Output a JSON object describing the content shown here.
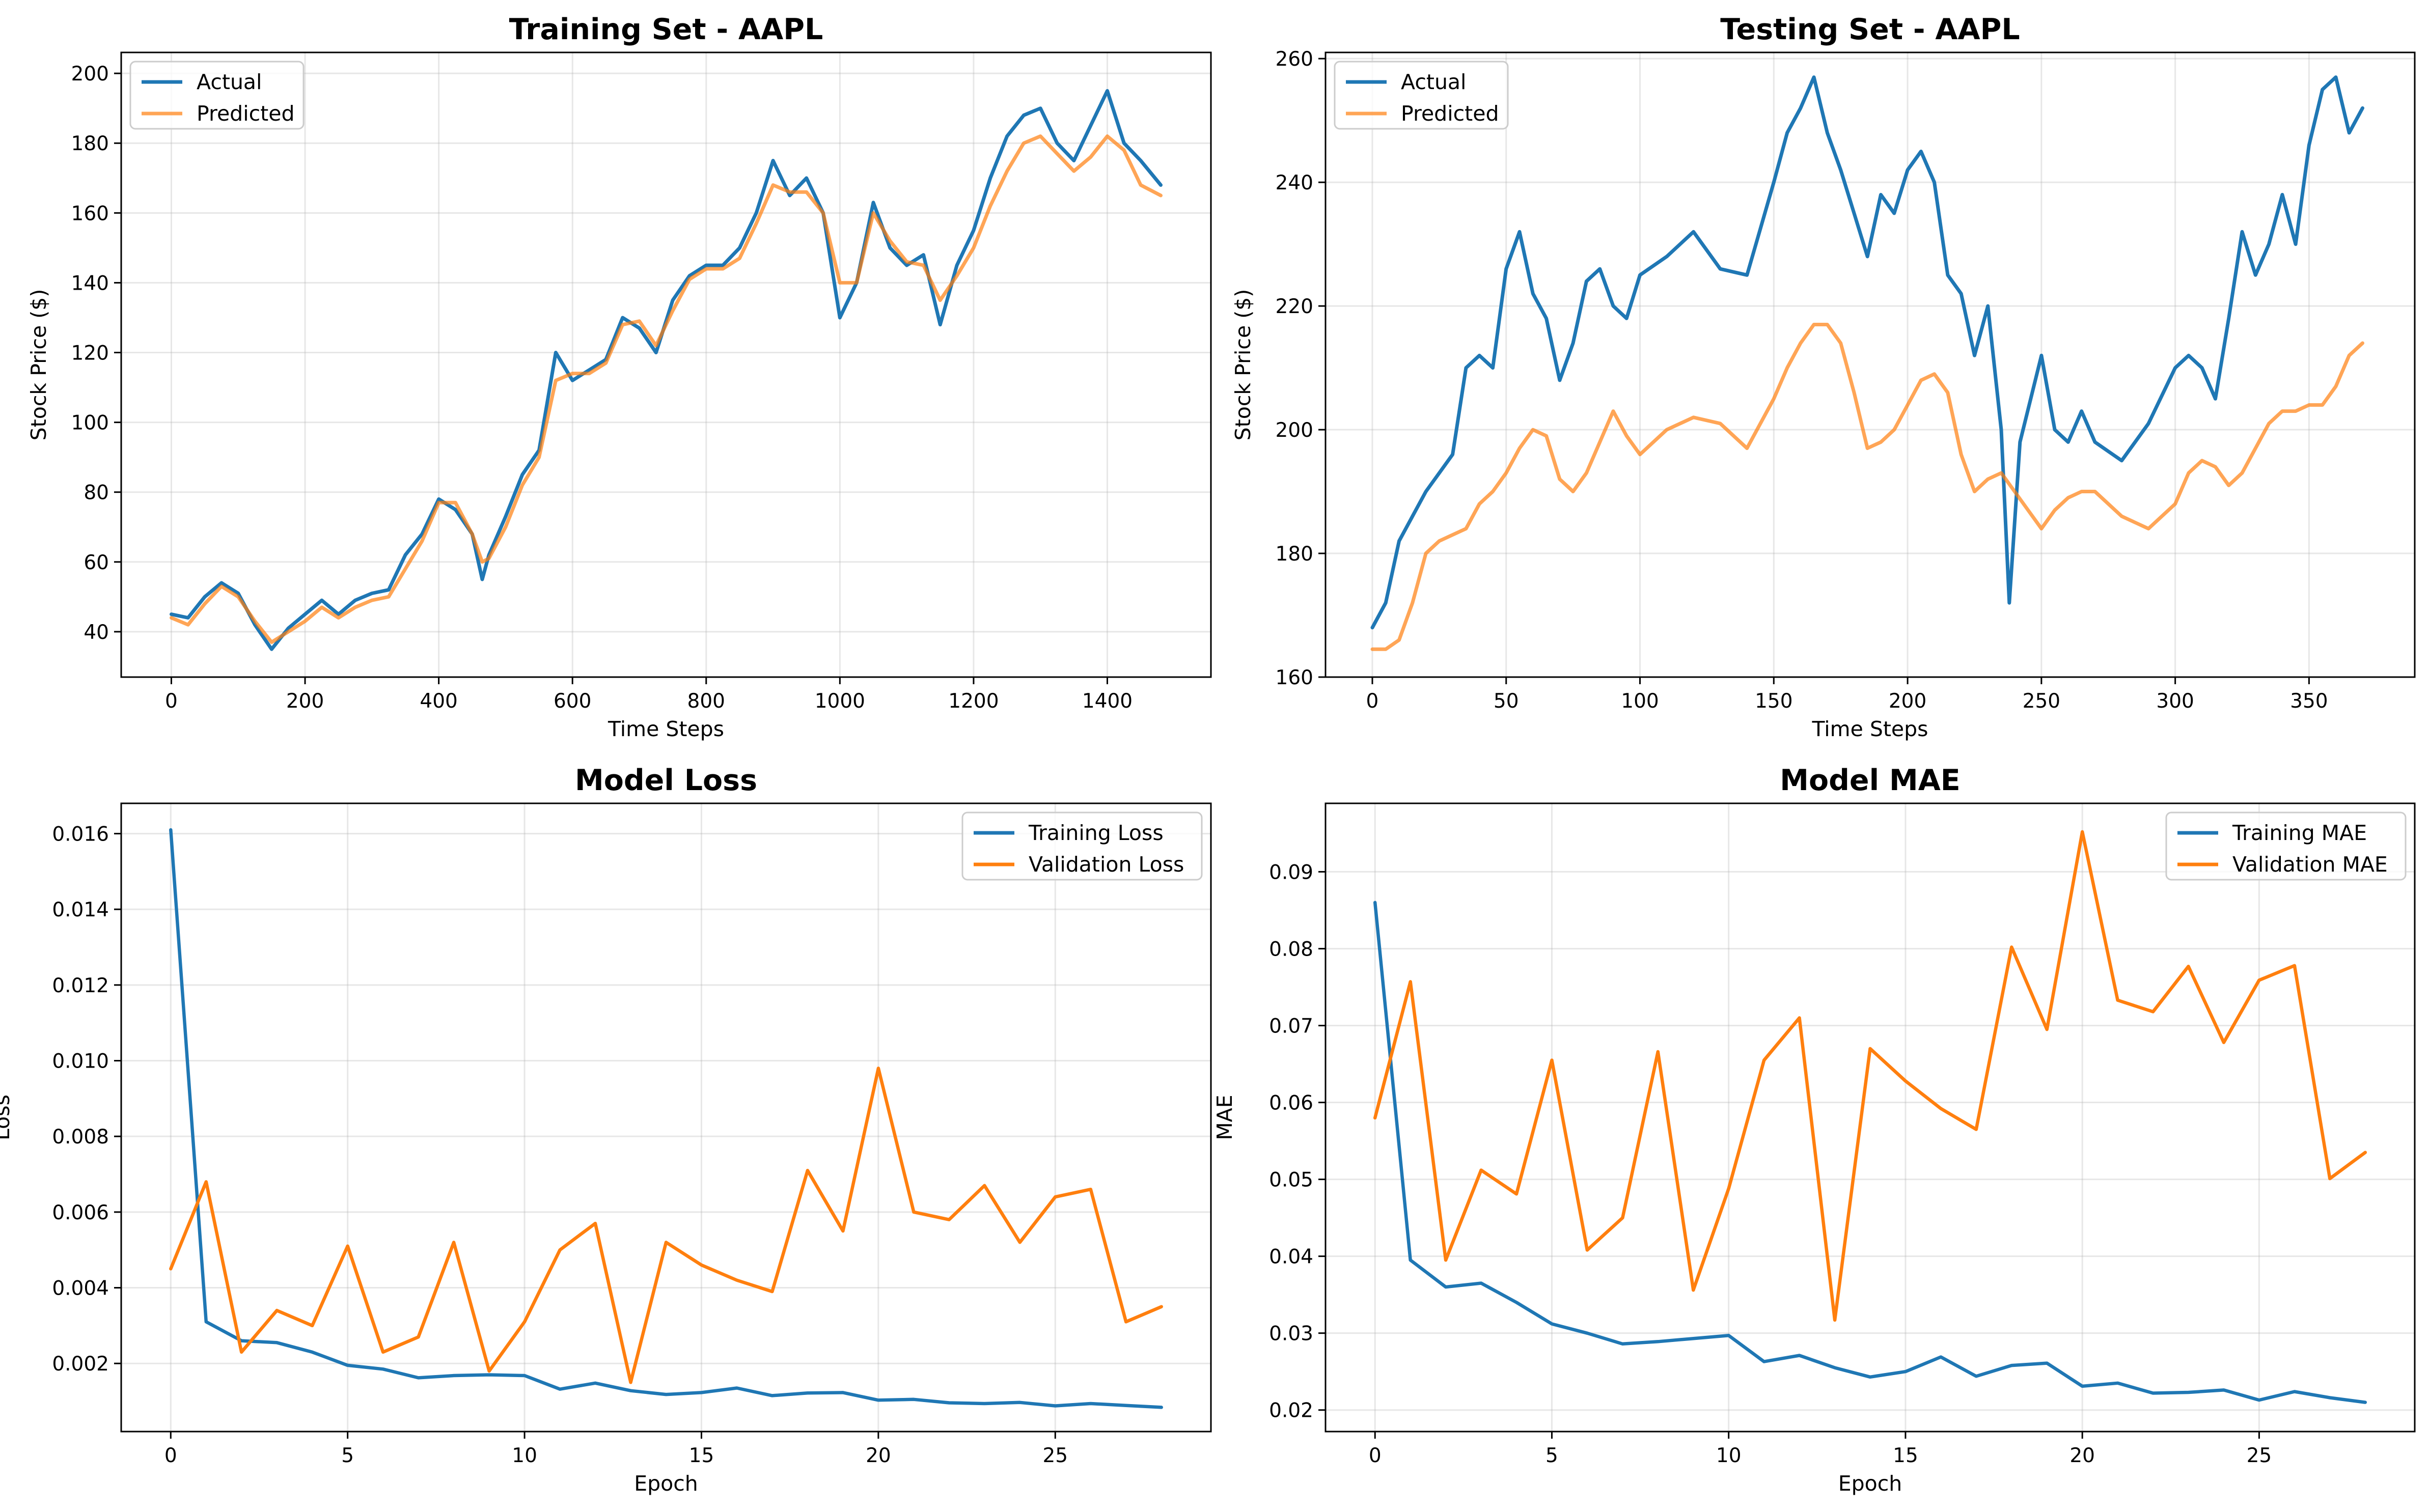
{
  "chart_data": [
    {
      "type": "line",
      "title": "Training Set - AAPL",
      "xlabel": "Time Steps",
      "ylabel": "Stock Price ($)",
      "xlim": [
        -75,
        1555
      ],
      "ylim": [
        27,
        206
      ],
      "xticks": [
        0,
        200,
        400,
        600,
        800,
        1000,
        1200,
        1400
      ],
      "yticks": [
        40,
        60,
        80,
        100,
        120,
        140,
        160,
        180,
        200
      ],
      "grid": true,
      "legend": "upper-left",
      "series": [
        {
          "name": "Actual",
          "color": "#1f77b4",
          "x": [
            0,
            25,
            50,
            75,
            100,
            125,
            150,
            175,
            200,
            225,
            250,
            275,
            300,
            325,
            350,
            375,
            400,
            425,
            450,
            465,
            475,
            500,
            525,
            550,
            575,
            600,
            625,
            650,
            675,
            700,
            725,
            750,
            775,
            800,
            825,
            850,
            875,
            900,
            925,
            950,
            975,
            1000,
            1025,
            1050,
            1075,
            1100,
            1125,
            1150,
            1175,
            1200,
            1225,
            1250,
            1275,
            1300,
            1325,
            1350,
            1375,
            1400,
            1425,
            1450,
            1480
          ],
          "y": [
            45,
            44,
            50,
            54,
            51,
            42,
            35,
            41,
            45,
            49,
            45,
            49,
            51,
            52,
            62,
            68,
            78,
            75,
            68,
            55,
            62,
            73,
            85,
            92,
            120,
            112,
            115,
            118,
            130,
            127,
            120,
            135,
            142,
            145,
            145,
            150,
            160,
            175,
            165,
            170,
            160,
            130,
            140,
            163,
            150,
            145,
            148,
            128,
            145,
            155,
            170,
            182,
            188,
            190,
            180,
            175,
            185,
            195,
            180,
            175,
            168
          ]
        },
        {
          "name": "Predicted",
          "color": "#ff7f0e",
          "x": [
            0,
            25,
            50,
            75,
            100,
            125,
            150,
            175,
            200,
            225,
            250,
            275,
            300,
            325,
            350,
            375,
            400,
            425,
            450,
            465,
            475,
            500,
            525,
            550,
            575,
            600,
            625,
            650,
            675,
            700,
            725,
            750,
            775,
            800,
            825,
            850,
            875,
            900,
            925,
            950,
            975,
            1000,
            1025,
            1050,
            1075,
            1100,
            1125,
            1150,
            1175,
            1200,
            1225,
            1250,
            1275,
            1300,
            1325,
            1350,
            1375,
            1400,
            1425,
            1450,
            1480
          ],
          "y": [
            44,
            42,
            48,
            53,
            50,
            43,
            37,
            40,
            43,
            47,
            44,
            47,
            49,
            50,
            58,
            66,
            77,
            77,
            68,
            60,
            61,
            70,
            82,
            90,
            112,
            114,
            114,
            117,
            128,
            129,
            122,
            132,
            141,
            144,
            144,
            147,
            157,
            168,
            166,
            166,
            160,
            140,
            140,
            160,
            152,
            146,
            145,
            135,
            142,
            150,
            162,
            172,
            180,
            182,
            177,
            172,
            176,
            182,
            178,
            168,
            165
          ]
        }
      ]
    },
    {
      "type": "line",
      "title": "Testing Set - AAPL",
      "xlabel": "Time Steps",
      "ylabel": "Stock Price ($)",
      "xlim": [
        -17.5,
        389.5
      ],
      "ylim": [
        160,
        261
      ],
      "xticks": [
        0,
        50,
        100,
        150,
        200,
        250,
        300,
        350
      ],
      "yticks": [
        160,
        180,
        200,
        220,
        240,
        260
      ],
      "grid": true,
      "legend": "upper-left",
      "series": [
        {
          "name": "Actual",
          "color": "#1f77b4",
          "x": [
            0,
            5,
            10,
            15,
            20,
            25,
            30,
            35,
            40,
            45,
            50,
            55,
            60,
            65,
            70,
            75,
            80,
            85,
            90,
            95,
            100,
            110,
            120,
            130,
            140,
            150,
            155,
            160,
            165,
            170,
            175,
            180,
            185,
            190,
            195,
            200,
            205,
            210,
            215,
            220,
            225,
            230,
            235,
            238,
            242,
            250,
            255,
            260,
            265,
            270,
            280,
            290,
            300,
            305,
            310,
            315,
            320,
            325,
            330,
            335,
            340,
            345,
            350,
            355,
            360,
            365,
            370
          ],
          "y": [
            168,
            172,
            182,
            186,
            190,
            193,
            196,
            210,
            212,
            210,
            226,
            232,
            222,
            218,
            208,
            214,
            224,
            226,
            220,
            218,
            225,
            228,
            232,
            226,
            225,
            240,
            248,
            252,
            257,
            248,
            242,
            235,
            228,
            238,
            235,
            242,
            245,
            240,
            225,
            222,
            212,
            220,
            200,
            172,
            198,
            212,
            200,
            198,
            203,
            198,
            195,
            201,
            210,
            212,
            210,
            205,
            218,
            232,
            225,
            230,
            238,
            230,
            246,
            255,
            257,
            248,
            252
          ]
        },
        {
          "name": "Predicted",
          "color": "#ff7f0e",
          "x": [
            0,
            5,
            10,
            15,
            20,
            25,
            30,
            35,
            40,
            45,
            50,
            55,
            60,
            65,
            70,
            75,
            80,
            85,
            90,
            95,
            100,
            110,
            120,
            130,
            140,
            150,
            155,
            160,
            165,
            170,
            175,
            180,
            185,
            190,
            195,
            200,
            205,
            210,
            215,
            220,
            225,
            230,
            235,
            240,
            245,
            250,
            255,
            260,
            265,
            270,
            280,
            290,
            300,
            305,
            310,
            315,
            320,
            325,
            330,
            335,
            340,
            345,
            350,
            355,
            360,
            365,
            370
          ],
          "y": [
            164.5,
            164.5,
            166,
            172,
            180,
            182,
            183,
            184,
            188,
            190,
            193,
            197,
            200,
            199,
            192,
            190,
            193,
            198,
            203,
            199,
            196,
            200,
            202,
            201,
            197,
            205,
            210,
            214,
            217,
            217,
            214,
            206,
            197,
            198,
            200,
            204,
            208,
            209,
            206,
            196,
            190,
            192,
            193,
            190,
            187,
            184,
            187,
            189,
            190,
            190,
            186,
            184,
            188,
            193,
            195,
            194,
            191,
            193,
            197,
            201,
            203,
            203,
            204,
            204,
            207,
            212,
            214
          ]
        }
      ]
    },
    {
      "type": "line",
      "title": "Model Loss",
      "xlabel": "Epoch",
      "ylabel": "Loss",
      "xlim": [
        -1.4,
        29.4
      ],
      "ylim": [
        0.0002,
        0.0168
      ],
      "xticks": [
        0,
        5,
        10,
        15,
        20,
        25
      ],
      "yticks": [
        0.002,
        0.004,
        0.006,
        0.008,
        0.01,
        0.012,
        0.014,
        0.016
      ],
      "ytick_labels": [
        "0.002",
        "0.004",
        "0.006",
        "0.008",
        "0.010",
        "0.012",
        "0.014",
        "0.016"
      ],
      "grid": true,
      "legend": "upper-right",
      "series": [
        {
          "name": "Training Loss",
          "color": "#1f77b4",
          "x": [
            0,
            1,
            2,
            3,
            4,
            5,
            6,
            7,
            8,
            9,
            10,
            11,
            12,
            13,
            14,
            15,
            16,
            17,
            18,
            19,
            20,
            21,
            22,
            23,
            24,
            25,
            26,
            27,
            28
          ],
          "y": [
            0.0161,
            0.0031,
            0.0026,
            0.00255,
            0.0023,
            0.00195,
            0.00185,
            0.00162,
            0.00168,
            0.0017,
            0.00168,
            0.00132,
            0.00148,
            0.00128,
            0.00118,
            0.00123,
            0.00135,
            0.00115,
            0.00122,
            0.00123,
            0.00103,
            0.00105,
            0.00096,
            0.00094,
            0.00097,
            0.00088,
            0.00094,
            0.00089,
            0.00084
          ]
        },
        {
          "name": "Validation Loss",
          "color": "#ff7f0e",
          "x": [
            0,
            1,
            2,
            3,
            4,
            5,
            6,
            7,
            8,
            9,
            10,
            11,
            12,
            13,
            14,
            15,
            16,
            17,
            18,
            19,
            20,
            21,
            22,
            23,
            24,
            25,
            26,
            27,
            28
          ],
          "y": [
            0.0045,
            0.0068,
            0.0023,
            0.0034,
            0.003,
            0.0051,
            0.0023,
            0.0027,
            0.0052,
            0.0018,
            0.0031,
            0.005,
            0.0057,
            0.0015,
            0.0052,
            0.0046,
            0.0042,
            0.0039,
            0.0071,
            0.0055,
            0.0098,
            0.006,
            0.0058,
            0.0067,
            0.0052,
            0.0064,
            0.0066,
            0.0031,
            0.0035
          ]
        }
      ]
    },
    {
      "type": "line",
      "title": "Model MAE",
      "xlabel": "Epoch",
      "ylabel": "MAE",
      "xlim": [
        -1.4,
        29.4
      ],
      "ylim": [
        0.0172,
        0.0989
      ],
      "xticks": [
        0,
        5,
        10,
        15,
        20,
        25
      ],
      "yticks": [
        0.02,
        0.03,
        0.04,
        0.05,
        0.06,
        0.07,
        0.08,
        0.09
      ],
      "ytick_labels": [
        "0.02",
        "0.03",
        "0.04",
        "0.05",
        "0.06",
        "0.07",
        "0.08",
        "0.09"
      ],
      "grid": true,
      "legend": "upper-right",
      "series": [
        {
          "name": "Training MAE",
          "color": "#1f77b4",
          "x": [
            0,
            1,
            2,
            3,
            4,
            5,
            6,
            7,
            8,
            9,
            10,
            11,
            12,
            13,
            14,
            15,
            16,
            17,
            18,
            19,
            20,
            21,
            22,
            23,
            24,
            25,
            26,
            27,
            28
          ],
          "y": [
            0.086,
            0.0395,
            0.036,
            0.0365,
            0.034,
            0.0312,
            0.03,
            0.0286,
            0.0289,
            0.0293,
            0.0297,
            0.0263,
            0.0271,
            0.0255,
            0.0243,
            0.025,
            0.0269,
            0.0244,
            0.0258,
            0.0261,
            0.0231,
            0.0235,
            0.0222,
            0.0223,
            0.0226,
            0.0213,
            0.0224,
            0.0216,
            0.021
          ]
        },
        {
          "name": "Validation MAE",
          "color": "#ff7f0e",
          "x": [
            0,
            1,
            2,
            3,
            4,
            5,
            6,
            7,
            8,
            9,
            10,
            11,
            12,
            13,
            14,
            15,
            16,
            17,
            18,
            19,
            20,
            21,
            22,
            23,
            24,
            25,
            26,
            27,
            28
          ],
          "y": [
            0.058,
            0.0757,
            0.0395,
            0.0512,
            0.0481,
            0.0655,
            0.0408,
            0.045,
            0.0666,
            0.0356,
            0.0488,
            0.0655,
            0.071,
            0.0317,
            0.067,
            0.0628,
            0.0592,
            0.0565,
            0.0802,
            0.0695,
            0.0952,
            0.0733,
            0.0718,
            0.0777,
            0.0678,
            0.0759,
            0.0778,
            0.0501,
            0.0535
          ]
        }
      ]
    }
  ]
}
